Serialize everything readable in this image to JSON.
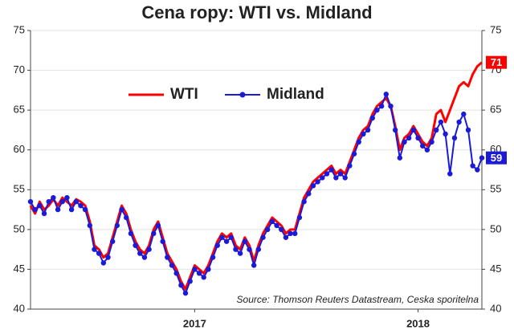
{
  "chart_data": {
    "type": "line",
    "title": "Cena ropy: WTI vs. Midland",
    "annotation": "Source: Thomson Reuters Datastream, Ceska sporitelna",
    "categories": [
      null,
      null,
      null,
      null,
      null,
      null,
      null,
      null,
      null,
      null,
      null,
      null,
      null,
      null,
      null,
      null,
      null,
      null,
      null,
      null,
      null,
      null,
      null,
      null,
      null,
      null,
      null,
      null,
      null,
      null,
      null,
      null,
      null,
      null,
      null,
      null,
      "2017",
      null,
      null,
      null,
      null,
      null,
      null,
      null,
      null,
      null,
      null,
      null,
      null,
      null,
      null,
      null,
      null,
      null,
      null,
      null,
      null,
      null,
      null,
      null,
      null,
      null,
      null,
      null,
      null,
      null,
      null,
      null,
      null,
      null,
      null,
      null,
      null,
      null,
      null,
      null,
      null,
      null,
      null,
      null,
      null,
      null,
      null,
      null,
      null,
      "2018",
      null,
      null,
      null,
      null,
      null,
      null,
      null,
      null,
      null,
      null,
      null,
      null,
      null,
      null
    ],
    "series": [
      {
        "name": "WTI",
        "color": "#ff0000",
        "values": [
          53,
          52,
          53.5,
          52.5,
          53,
          53.8,
          53,
          54,
          53.5,
          53,
          53.8,
          53.5,
          53,
          51,
          48,
          47.5,
          46.5,
          47,
          49,
          51,
          53,
          52,
          50,
          48.5,
          47.5,
          47,
          48,
          50,
          51,
          49,
          47,
          46,
          45,
          43.5,
          42.5,
          44,
          45.5,
          45,
          44.5,
          45.5,
          47,
          48.5,
          49.5,
          49,
          49.5,
          48,
          47.5,
          49,
          48,
          46,
          48,
          49.5,
          50.5,
          51.5,
          51,
          50.5,
          49.5,
          50,
          50,
          52,
          54,
          55,
          56,
          56.5,
          57,
          57.5,
          58,
          57,
          57.5,
          57,
          58.5,
          60,
          61.5,
          62.5,
          63,
          64.5,
          65.5,
          66,
          66.5,
          65.5,
          63,
          60,
          61.5,
          62,
          63,
          62,
          61,
          60.5,
          61.5,
          64.5,
          65,
          63.5,
          65,
          66.5,
          68,
          68.5,
          68,
          69.5,
          70.5,
          71
        ]
      },
      {
        "name": "Midland",
        "color": "#1a1ad8",
        "values": [
          53.5,
          52.5,
          53,
          52,
          53.5,
          54,
          52.5,
          53.5,
          54,
          52.5,
          53.5,
          53,
          52.5,
          50.5,
          47.5,
          47,
          45.8,
          46.5,
          48.5,
          50.5,
          52.5,
          51.5,
          49.5,
          48,
          47,
          46.5,
          47.5,
          49.5,
          50.5,
          48.5,
          46.5,
          45.5,
          44.5,
          43,
          42,
          43.5,
          45,
          44.5,
          44,
          45,
          46.5,
          48,
          49,
          48.5,
          49,
          47.5,
          47,
          48.5,
          47.5,
          45.5,
          47.5,
          49,
          50,
          51,
          50.5,
          50,
          49,
          49.5,
          49.5,
          51.5,
          53.5,
          54.5,
          55.5,
          56,
          56.5,
          57,
          57.5,
          56.5,
          57,
          56.5,
          58,
          59.5,
          61,
          62,
          62.5,
          64,
          65,
          65.5,
          67,
          65.5,
          62.5,
          59,
          61,
          61.5,
          62.5,
          61.5,
          60.5,
          60,
          61,
          62.5,
          63.5,
          62,
          57,
          61.5,
          63.5,
          64.5,
          62.5,
          58,
          57.5,
          59
        ]
      }
    ],
    "ylim": [
      40,
      75
    ],
    "yticks": [
      40,
      45,
      50,
      55,
      60,
      65,
      70,
      75
    ],
    "y2lim": [
      40,
      75
    ],
    "y2ticks": [
      40,
      45,
      50,
      55,
      60,
      65,
      70,
      75
    ],
    "grid": true,
    "legend": "upper center"
  }
}
